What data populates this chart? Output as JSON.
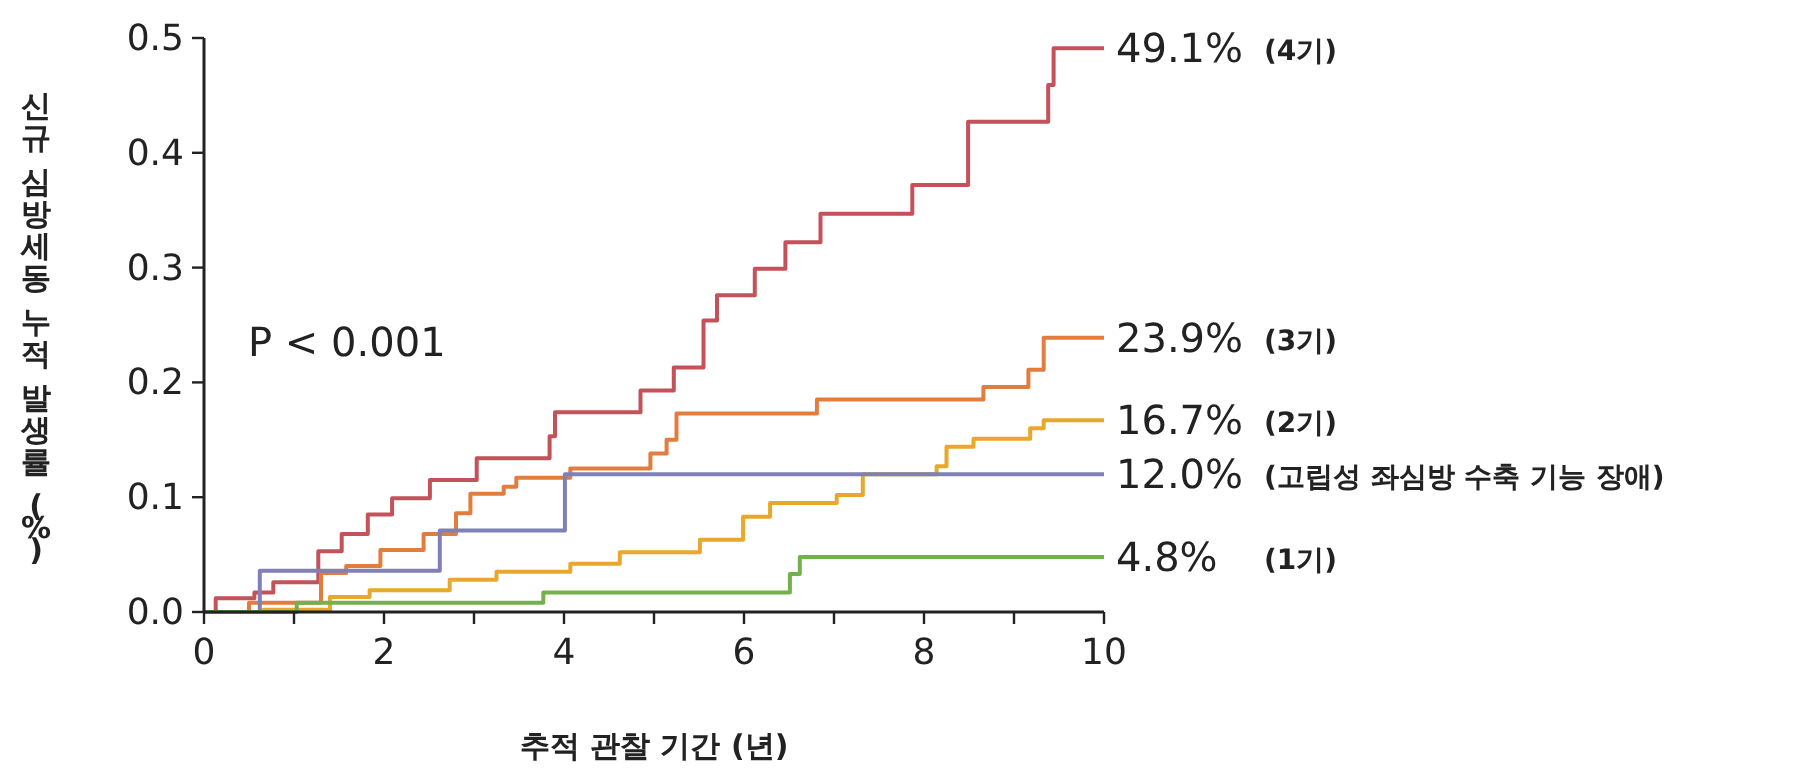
{
  "chart_data": {
    "type": "step",
    "xlabel": "추적 관찰 기간 (년)",
    "ylabel": "신규 심방세동 누적 발생률 (%)",
    "xlim": [
      0,
      10
    ],
    "xticks": [
      0,
      {
        "value": 1,
        "label": null
      },
      2,
      {
        "value": 3,
        "label": null
      },
      4,
      {
        "value": 5,
        "label": null
      },
      6,
      {
        "value": 7,
        "label": null
      },
      8,
      {
        "value": 9,
        "label": null
      },
      10
    ],
    "ylim": [
      0,
      0.5
    ],
    "yticks": [
      {
        "value": 0,
        "label": "0.0"
      },
      0.1,
      0.2,
      0.3,
      0.4,
      0.5
    ],
    "grid": false,
    "legend": false,
    "series": [
      {
        "name": "(4기)",
        "color": "#c4525a",
        "x": [
          0,
          0.13,
          0.56,
          0.77,
          1.27,
          1.53,
          1.82,
          2.09,
          2.51,
          3.03,
          3.84,
          3.9,
          4.85,
          5.22,
          5.55,
          5.7,
          6.12,
          6.46,
          6.85,
          7.87,
          8.49,
          9.38,
          9.44,
          10
        ],
        "values": [
          0,
          0.012,
          0.017,
          0.026,
          0.053,
          0.068,
          0.085,
          0.099,
          0.115,
          0.134,
          0.153,
          0.174,
          0.193,
          0.213,
          0.254,
          0.276,
          0.299,
          0.322,
          0.347,
          0.372,
          0.427,
          0.459,
          0.491,
          0.491
        ],
        "value_labels": [
          null,
          null,
          null,
          null,
          null,
          null,
          null,
          null,
          null,
          null,
          null,
          null,
          null,
          null,
          null,
          null,
          null,
          null,
          null,
          null,
          null,
          null,
          null,
          "49.1%"
        ]
      },
      {
        "name": "(3기)",
        "color": "#e27d3e",
        "x": [
          0,
          0.5,
          1.3,
          1.58,
          1.96,
          2.44,
          2.8,
          2.96,
          3.33,
          3.47,
          4.07,
          4.96,
          5.14,
          5.25,
          6.81,
          8.66,
          9.16,
          9.33,
          10
        ],
        "values": [
          0,
          0.008,
          0.034,
          0.04,
          0.054,
          0.068,
          0.086,
          0.103,
          0.109,
          0.117,
          0.125,
          0.138,
          0.15,
          0.173,
          0.185,
          0.196,
          0.211,
          0.239,
          0.239
        ],
        "value_labels": [
          null,
          null,
          null,
          null,
          null,
          null,
          null,
          null,
          null,
          null,
          null,
          null,
          null,
          null,
          null,
          null,
          null,
          null,
          "23.9%"
        ]
      },
      {
        "name": "(2기)",
        "color": "#e8a82c",
        "x": [
          0,
          0.66,
          1.4,
          1.84,
          2.73,
          3.25,
          4.07,
          4.62,
          5.51,
          5.99,
          6.29,
          7.03,
          7.32,
          8.14,
          8.25,
          8.55,
          9.18,
          9.33,
          10
        ],
        "values": [
          0,
          0.002,
          0.013,
          0.019,
          0.028,
          0.035,
          0.042,
          0.052,
          0.063,
          0.083,
          0.095,
          0.102,
          0.12,
          0.127,
          0.144,
          0.151,
          0.16,
          0.167,
          0.167
        ],
        "value_labels": [
          null,
          null,
          null,
          null,
          null,
          null,
          null,
          null,
          null,
          null,
          null,
          null,
          null,
          null,
          null,
          null,
          null,
          null,
          "16.7%"
        ]
      },
      {
        "name": "(고립성 좌심방 수축 기능 장애)",
        "color": "#7f80b8",
        "x": [
          0,
          0.62,
          2.62,
          4.01,
          10
        ],
        "values": [
          0,
          0.036,
          0.071,
          0.12,
          0.12
        ],
        "value_labels": [
          null,
          null,
          null,
          null,
          "12.0%"
        ]
      },
      {
        "name": "(1기)",
        "color": "#74b04c",
        "x": [
          0,
          1.03,
          3.77,
          6.51,
          6.62,
          10
        ],
        "values": [
          0,
          0.008,
          0.017,
          0.033,
          0.048,
          0.048
        ],
        "value_labels": [
          null,
          null,
          null,
          null,
          null,
          "4.8%"
        ]
      }
    ],
    "annotations": [
      "P < 0.001"
    ]
  }
}
